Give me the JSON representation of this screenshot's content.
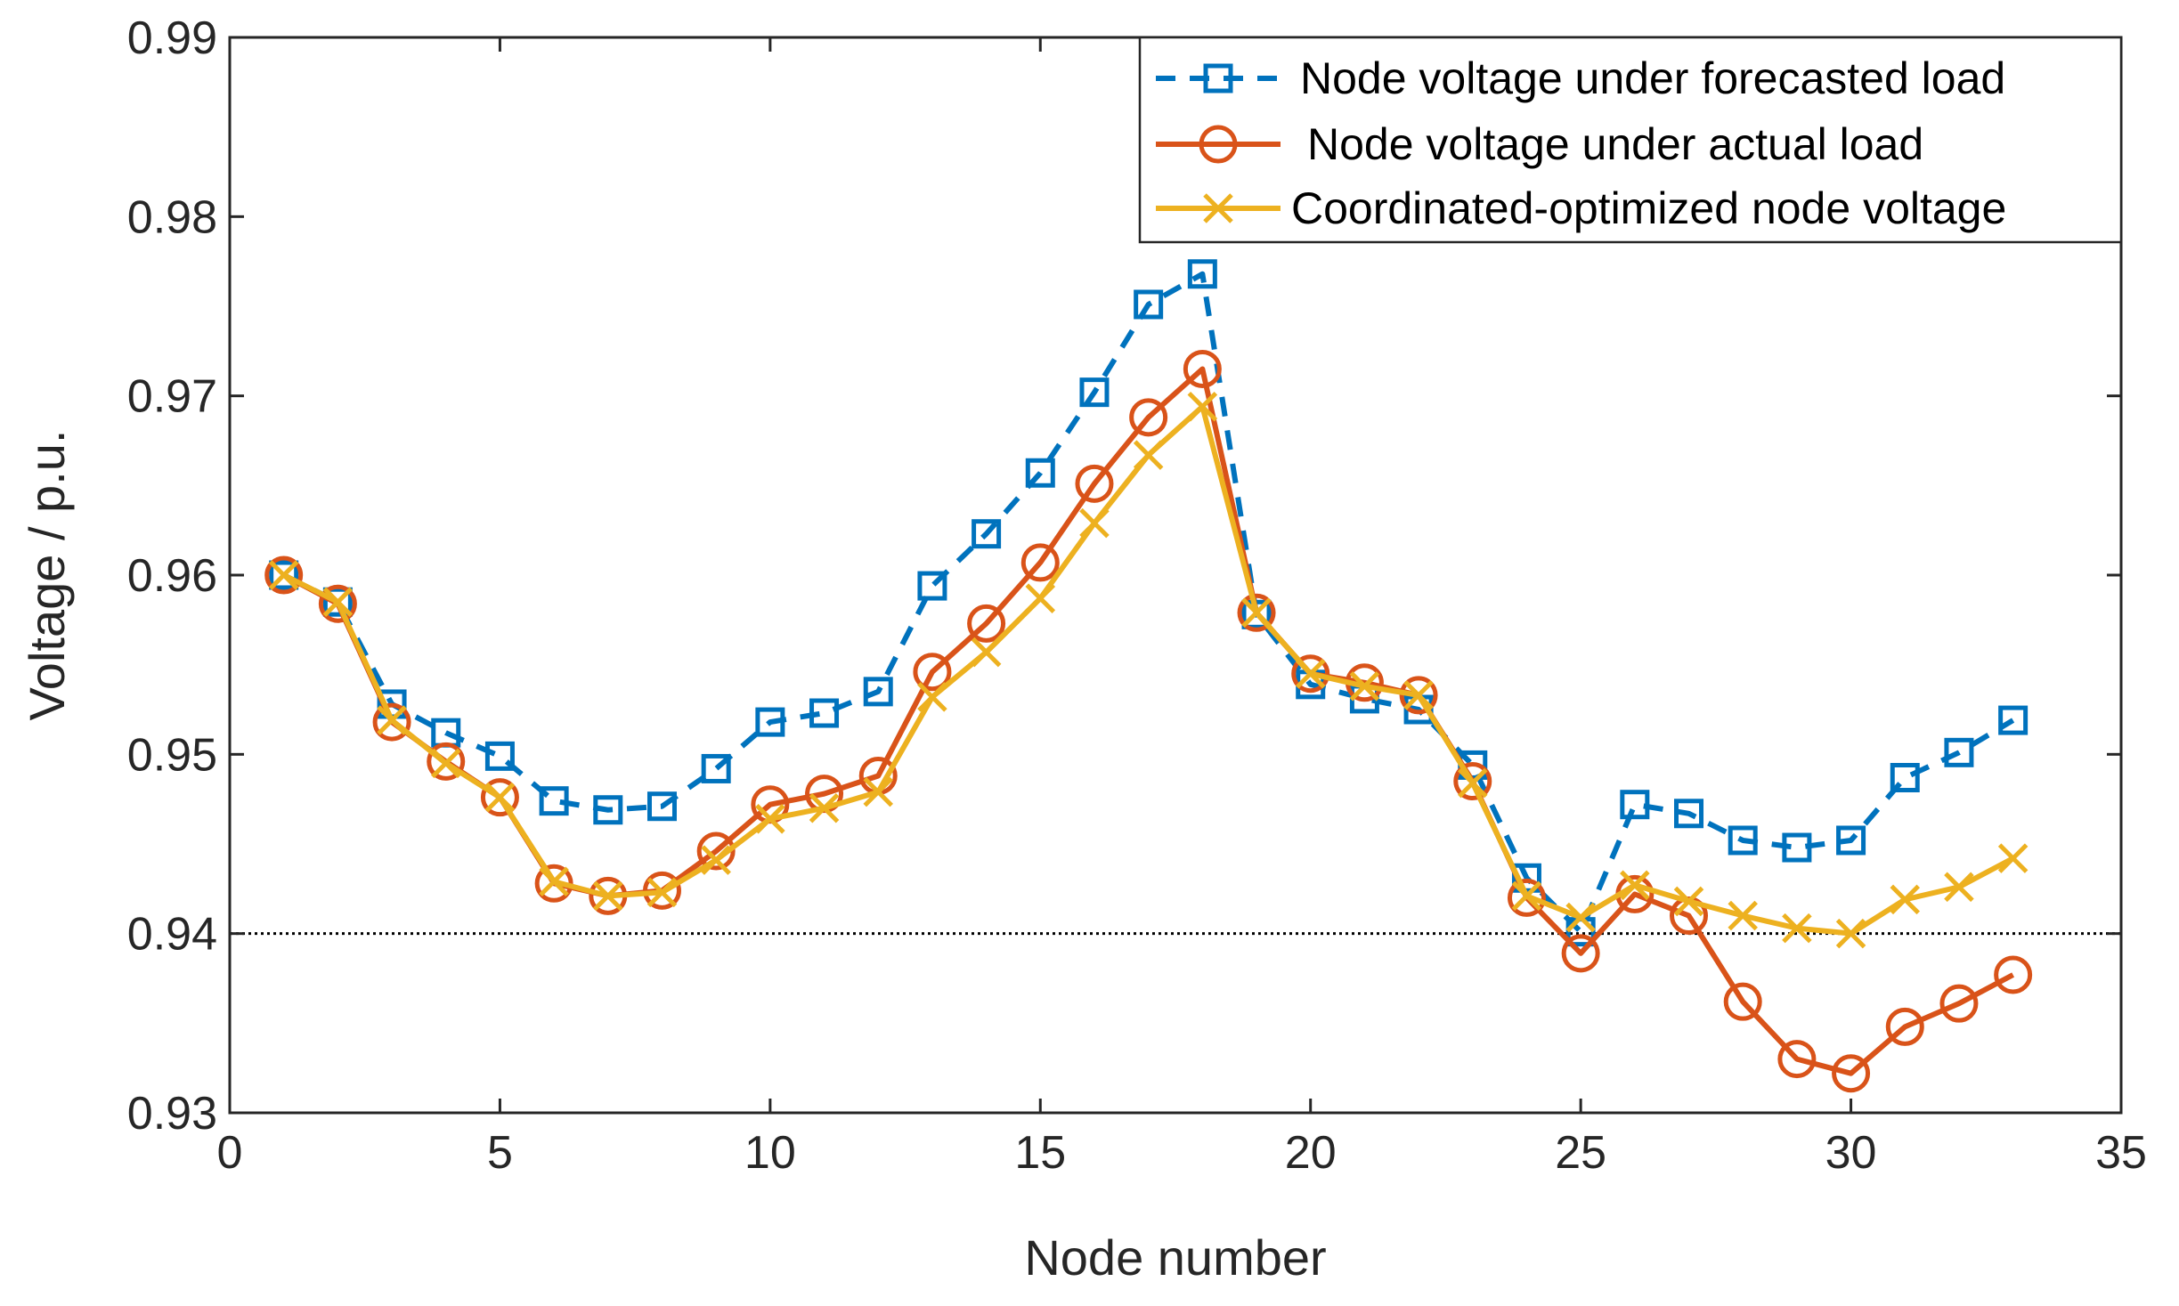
{
  "chart_data": {
    "type": "line",
    "xlabel": "Node number",
    "ylabel": "Voltage / p.u.",
    "xlim": [
      0,
      35
    ],
    "ylim": [
      0.93,
      0.99
    ],
    "xticks": [
      0,
      5,
      10,
      15,
      20,
      25,
      30,
      35
    ],
    "yticks": [
      0.93,
      0.94,
      0.95,
      0.96,
      0.97,
      0.98,
      0.99
    ],
    "xtick_labels": [
      "0",
      "5",
      "10",
      "15",
      "20",
      "25",
      "30",
      "35"
    ],
    "ytick_labels": [
      "0.93",
      "0.94",
      "0.95",
      "0.96",
      "0.97",
      "0.98",
      "0.99"
    ],
    "reference_line": {
      "y": 0.94,
      "style": "dotted",
      "color": "#000000"
    },
    "legend_position": "top-right",
    "x": [
      1,
      2,
      3,
      4,
      5,
      6,
      7,
      8,
      9,
      10,
      11,
      12,
      13,
      14,
      15,
      16,
      17,
      18,
      19,
      20,
      21,
      22,
      23,
      24,
      25,
      26,
      27,
      28,
      29,
      30,
      31,
      32,
      33
    ],
    "series": [
      {
        "name": "Node voltage under forecasted load",
        "color": "#0072BD",
        "marker": "square",
        "line": "dashed",
        "values": [
          0.96,
          0.9585,
          0.9528,
          0.9512,
          0.9499,
          0.9474,
          0.9469,
          0.9471,
          0.9492,
          0.9518,
          0.9523,
          0.9535,
          0.9594,
          0.9623,
          0.9657,
          0.9702,
          0.9751,
          0.9768,
          0.9578,
          0.9539,
          0.9531,
          0.9525,
          0.9494,
          0.9431,
          0.9401,
          0.9472,
          0.9467,
          0.9452,
          0.9448,
          0.9452,
          0.9487,
          0.9501,
          0.9519
        ]
      },
      {
        "name": "Node voltage under actual load",
        "color": "#D95319",
        "marker": "circle",
        "line": "solid",
        "values": [
          0.96,
          0.9584,
          0.9518,
          0.9496,
          0.9476,
          0.9428,
          0.9421,
          0.9424,
          0.9446,
          0.9472,
          0.9478,
          0.9488,
          0.9546,
          0.9573,
          0.9607,
          0.9651,
          0.9688,
          0.9715,
          0.9579,
          0.9545,
          0.954,
          0.9533,
          0.9485,
          0.942,
          0.9389,
          0.9422,
          0.941,
          0.9362,
          0.933,
          0.9322,
          0.9348,
          0.9361,
          0.9377
        ]
      },
      {
        "name": "Coordinated-optimized node voltage",
        "color": "#EDB120",
        "marker": "x",
        "line": "solid",
        "values": [
          0.96,
          0.9585,
          0.9519,
          0.9495,
          0.9476,
          0.9429,
          0.9421,
          0.9423,
          0.9441,
          0.9464,
          0.947,
          0.9479,
          0.9532,
          0.9557,
          0.9587,
          0.9629,
          0.9667,
          0.9694,
          0.9579,
          0.9545,
          0.9538,
          0.9533,
          0.9484,
          0.9421,
          0.9409,
          0.9427,
          0.9418,
          0.941,
          0.9403,
          0.94,
          0.9419,
          0.9426,
          0.9442
        ]
      }
    ]
  }
}
